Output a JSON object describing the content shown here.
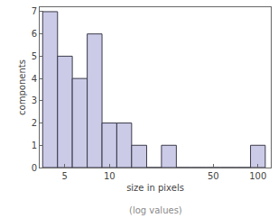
{
  "chart_data": {
    "type": "histogram",
    "xlabel": "size in pixels",
    "ylabel": "components",
    "annotations": [
      "(log values)"
    ],
    "bins": [
      3.55,
      4.47,
      5.62,
      7.08,
      8.91,
      11.2,
      14.1,
      17.8,
      22.4,
      28.2,
      35.5,
      44.7,
      56.2,
      70.8,
      89.1,
      112
    ],
    "counts": [
      7,
      5,
      4,
      6,
      2,
      2,
      1,
      0,
      1,
      0,
      0,
      0,
      0,
      0,
      1
    ],
    "color": "#cbcbe8",
    "log": "x",
    "xlim": [
      3.39,
      122
    ],
    "ylim": [
      0,
      7.2
    ],
    "xticks": [
      5,
      10,
      50,
      100
    ],
    "yticks": [
      0,
      1,
      2,
      3,
      4,
      5,
      6,
      7
    ],
    "grid": false
  }
}
